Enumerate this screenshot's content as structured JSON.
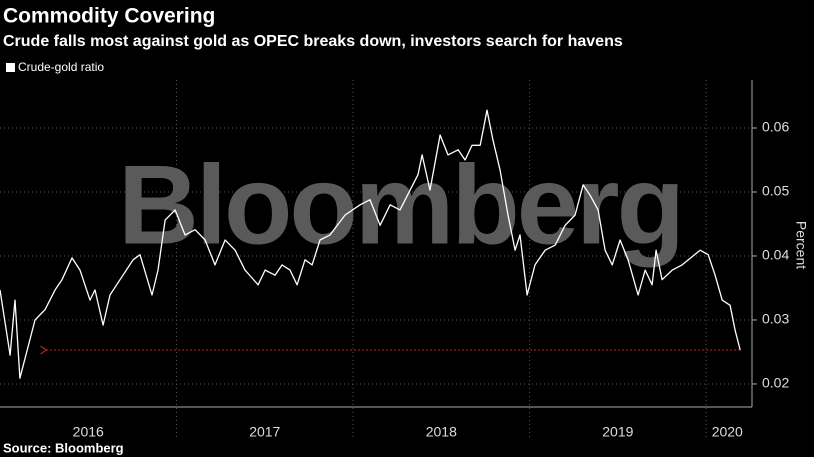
{
  "chart_data": {
    "type": "line",
    "title": "Commodity Covering",
    "subtitle": "Crude falls most against gold as OPEC breaks down, investors search for havens",
    "y_label": "Percent",
    "source": "Source: Bloomberg",
    "watermark": "Bloomberg",
    "legend": "top-left",
    "x": [
      2016.0,
      2016.057,
      2016.085,
      2016.113,
      2016.198,
      2016.255,
      2016.312,
      2016.351,
      2016.408,
      2016.453,
      2016.51,
      2016.538,
      2016.584,
      2016.623,
      2016.68,
      2016.754,
      2016.793,
      2016.861,
      2016.895,
      2016.935,
      2016.992,
      2017.048,
      2017.105,
      2017.162,
      2017.218,
      2017.275,
      2017.332,
      2017.388,
      2017.462,
      2017.502,
      2017.558,
      2017.598,
      2017.643,
      2017.683,
      2017.728,
      2017.768,
      2017.813,
      2017.87,
      2017.955,
      2018.04,
      2018.096,
      2018.153,
      2018.21,
      2018.266,
      2018.323,
      2018.368,
      2018.391,
      2018.436,
      2018.493,
      2018.538,
      2018.595,
      2018.635,
      2018.674,
      2018.72,
      2018.759,
      2018.793,
      2018.833,
      2018.878,
      2018.918,
      2018.946,
      2018.986,
      2019.031,
      2019.088,
      2019.145,
      2019.201,
      2019.258,
      2019.303,
      2019.343,
      2019.388,
      2019.428,
      2019.468,
      2019.513,
      2019.558,
      2019.615,
      2019.655,
      2019.694,
      2019.717,
      2019.751,
      2019.808,
      2019.864,
      2019.966,
      2020.012,
      2020.051,
      2020.091,
      2020.136,
      2020.164,
      2020.193
    ],
    "series": [
      {
        "name": "Crude-gold ratio",
        "color": "#ffffff",
        "values": [
          0.0347,
          0.0245,
          0.0331,
          0.0209,
          0.03,
          0.0316,
          0.0347,
          0.0363,
          0.0397,
          0.0378,
          0.0331,
          0.0347,
          0.0292,
          0.0339,
          0.0363,
          0.0394,
          0.0402,
          0.0339,
          0.0378,
          0.0456,
          0.0472,
          0.0433,
          0.0441,
          0.0425,
          0.0386,
          0.0425,
          0.0409,
          0.0378,
          0.0355,
          0.0378,
          0.037,
          0.0386,
          0.0378,
          0.0355,
          0.0394,
          0.0386,
          0.0425,
          0.0433,
          0.0464,
          0.048,
          0.0488,
          0.0448,
          0.048,
          0.0472,
          0.0503,
          0.0527,
          0.0558,
          0.0503,
          0.0589,
          0.0558,
          0.0566,
          0.055,
          0.0573,
          0.0573,
          0.0628,
          0.0581,
          0.0534,
          0.0464,
          0.0409,
          0.0433,
          0.0339,
          0.0386,
          0.0409,
          0.0417,
          0.0448,
          0.0464,
          0.0511,
          0.0495,
          0.0472,
          0.0409,
          0.0386,
          0.0425,
          0.0394,
          0.0339,
          0.0378,
          0.0355,
          0.0409,
          0.0363,
          0.0378,
          0.0386,
          0.0409,
          0.0402,
          0.037,
          0.0331,
          0.0323,
          0.0284,
          0.0253
        ]
      }
    ],
    "xlim": [
      2016.0,
      2020.26
    ],
    "xticks": [
      {
        "value": 2016.5,
        "label": "2016"
      },
      {
        "value": 2017.5,
        "label": "2017"
      },
      {
        "value": 2018.5,
        "label": "2018"
      },
      {
        "value": 2019.5,
        "label": "2019"
      },
      {
        "value": 2020.12,
        "label": "2020"
      }
    ],
    "xgrid": [
      2017,
      2018,
      2019,
      2020
    ],
    "ylim": [
      0.0164,
      0.0675
    ],
    "yticks": [
      0.02,
      0.03,
      0.04,
      0.05,
      0.06
    ],
    "grid": true,
    "arrow": {
      "y": 0.0253,
      "x": [
        2020.193,
        2016.263
      ],
      "color": "#d0262c"
    }
  }
}
